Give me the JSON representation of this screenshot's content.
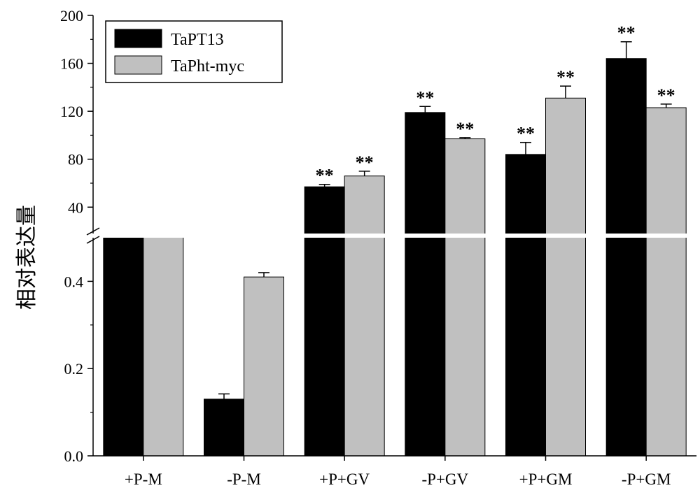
{
  "chart_data": {
    "type": "bar",
    "title": "",
    "xlabel": "",
    "ylabel": "相对表达量",
    "categories": [
      "+P-M",
      "-P-M",
      "+P+GV",
      "-P+GV",
      "+P+GM",
      "-P+GM"
    ],
    "series": [
      {
        "name": "TaPT13",
        "color": "#000000",
        "values": [
          1.0,
          0.13,
          57,
          119,
          84,
          164
        ],
        "errors": [
          0,
          0.012,
          2,
          5,
          10,
          14
        ],
        "significance": [
          "",
          "",
          "**",
          "**",
          "**",
          "**"
        ]
      },
      {
        "name": "TaPht-myc",
        "color": "#c0c0c0",
        "values": [
          1.0,
          0.41,
          66,
          97,
          131,
          123
        ],
        "errors": [
          0,
          0.01,
          4,
          1,
          10,
          3
        ],
        "significance": [
          "",
          "",
          "**",
          "**",
          "**",
          "**"
        ]
      }
    ],
    "axis_break": true,
    "y_lower": {
      "ylim": [
        0,
        0.5
      ],
      "ticks": [
        "0.0",
        "0.2",
        "0.4"
      ]
    },
    "y_upper": {
      "ylim": [
        18,
        200
      ],
      "ticks": [
        "40",
        "80",
        "120",
        "160",
        "200"
      ]
    },
    "legend_position": "top-left",
    "grid": false
  }
}
